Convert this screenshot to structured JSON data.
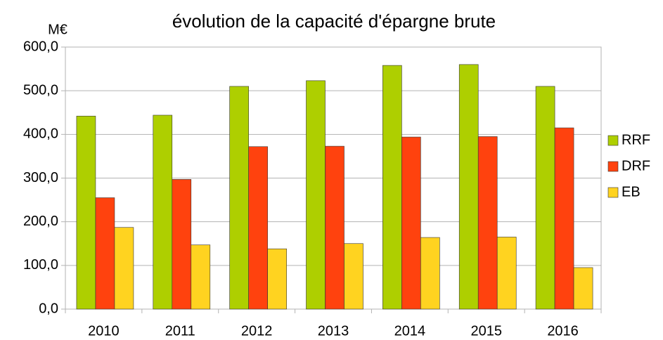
{
  "chart_data": {
    "type": "bar",
    "title": "évolution de la capacité d'épargne brute",
    "y_axis_label": "M€",
    "categories": [
      "2010",
      "2011",
      "2012",
      "2013",
      "2014",
      "2015",
      "2016"
    ],
    "series": [
      {
        "name": "RRF",
        "color": "#aecf00",
        "values": [
          442,
          444,
          510,
          523,
          558,
          560,
          510
        ]
      },
      {
        "name": "DRF",
        "color": "#ff420e",
        "values": [
          255,
          297,
          372,
          373,
          394,
          395,
          415
        ]
      },
      {
        "name": "EB",
        "color": "#ffd320",
        "values": [
          187,
          147,
          138,
          150,
          164,
          165,
          95
        ]
      }
    ],
    "ylim": [
      0,
      600
    ],
    "yticks": [
      {
        "value": 0,
        "label": "0,0"
      },
      {
        "value": 100,
        "label": "100,0"
      },
      {
        "value": 200,
        "label": "200,0"
      },
      {
        "value": 300,
        "label": "300,0"
      },
      {
        "value": 400,
        "label": "400,0"
      },
      {
        "value": 500,
        "label": "500,0"
      },
      {
        "value": 600,
        "label": "600,0"
      }
    ],
    "grid": true,
    "legend": "right"
  }
}
